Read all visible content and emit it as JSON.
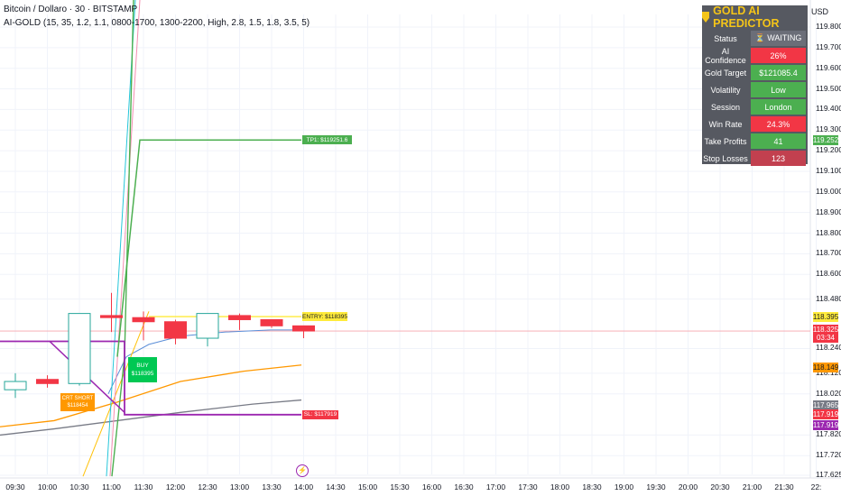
{
  "header": {
    "title": "Bitcoin / Dollaro · 30 · BITSTAMP",
    "indicator": "AI-GOLD (15, 35, 1.2, 1.1, 0800-1700, 1300-2200, High, 2.8, 1.5, 1.8, 3.5, 5)"
  },
  "panel": {
    "title": "GOLD AI PREDICTOR",
    "rows": [
      {
        "label": "Status",
        "value": "⏳ WAITING",
        "color": "#6b6e78"
      },
      {
        "label": "AI Confidence",
        "value": "26%",
        "color": "#f23645"
      },
      {
        "label": "Gold Target",
        "value": "$121085.4",
        "color": "#4caf50"
      },
      {
        "label": "Volatility",
        "value": "Low",
        "color": "#4caf50"
      },
      {
        "label": "Session",
        "value": "London",
        "color": "#4caf50"
      },
      {
        "label": "Win Rate",
        "value": "24.3%",
        "color": "#f23645"
      },
      {
        "label": "Take Profits",
        "value": "41",
        "color": "#4caf50"
      },
      {
        "label": "Stop Losses",
        "value": "123",
        "color": "#c2404f"
      }
    ]
  },
  "chart_data": {
    "type": "candlestick",
    "currency_label": "USD",
    "y_ticks": [
      "119.800",
      "119.700",
      "119.600",
      "119.500",
      "119.400",
      "119.300",
      "119.200",
      "119.100",
      "119.000",
      "118.900",
      "118.800",
      "118.700",
      "118.600",
      "118.480",
      "118.240",
      "118.120",
      "118.020",
      "117.820",
      "117.720",
      "117.625"
    ],
    "x_ticks": [
      "09:30",
      "10:00",
      "10:30",
      "11:00",
      "11:30",
      "12:00",
      "12:30",
      "13:00",
      "13:30",
      "14:00",
      "14:30",
      "15:00",
      "15:30",
      "16:00",
      "16:30",
      "17:00",
      "17:30",
      "18:00",
      "18:30",
      "19:00",
      "19:30",
      "20:00",
      "20:30",
      "21:00",
      "21:30",
      "22:"
    ],
    "candles": [
      {
        "time": "09:30",
        "open": 118.04,
        "high": 118.12,
        "low": 118.0,
        "close": 118.08
      },
      {
        "time": "10:00",
        "open": 118.09,
        "high": 118.11,
        "low": 118.05,
        "close": 118.07
      },
      {
        "time": "10:30",
        "open": 118.07,
        "high": 118.41,
        "low": 118.06,
        "close": 118.41
      },
      {
        "time": "11:00",
        "open": 118.4,
        "high": 118.51,
        "low": 118.32,
        "close": 118.39
      },
      {
        "time": "11:30",
        "open": 118.39,
        "high": 118.42,
        "low": 118.28,
        "close": 118.37
      },
      {
        "time": "12:00",
        "open": 118.37,
        "high": 118.38,
        "low": 118.26,
        "close": 118.29
      },
      {
        "time": "12:30",
        "open": 118.29,
        "high": 118.41,
        "low": 118.25,
        "close": 118.41
      },
      {
        "time": "13:00",
        "open": 118.4,
        "high": 118.41,
        "low": 118.33,
        "close": 118.38
      },
      {
        "time": "13:30",
        "open": 118.38,
        "high": 118.38,
        "low": 118.34,
        "close": 118.35
      },
      {
        "time": "14:00",
        "open": 118.35,
        "high": 118.35,
        "low": 118.29,
        "close": 118.325
      }
    ],
    "levels": {
      "tp1": {
        "label": "TP1: $119251.6",
        "value": 119.252
      },
      "entry": {
        "label": "ENTRY: $118395",
        "value": 118.395
      },
      "sl": {
        "label": "SL: $117919",
        "value": 117.919
      }
    },
    "signals": [
      {
        "label": "BUY $118395",
        "type": "buy"
      },
      {
        "label": "CRT SHORT $118454",
        "type": "short"
      }
    ],
    "price_labels": [
      {
        "value": "119.252",
        "color": "#4caf50",
        "text_color": "#ffffff"
      },
      {
        "value": "118.395",
        "color": "#ffeb3b",
        "text_color": "#131722"
      },
      {
        "value": "118.328",
        "color": "#2962ff",
        "text_color": "#ffffff"
      },
      {
        "value": "118.325",
        "color": "#f23645",
        "text_color": "#ffffff"
      },
      {
        "value": "03:34",
        "color": "#f23645",
        "text_color": "#ffffff"
      },
      {
        "value": "118.149",
        "color": "#ff9800",
        "text_color": "#131722"
      },
      {
        "value": "117.965",
        "color": "#787b86",
        "text_color": "#ffffff"
      },
      {
        "value": "117.919",
        "color": "#f23645",
        "text_color": "#ffffff"
      },
      {
        "value": "117.919",
        "color": "#9c27b0",
        "text_color": "#ffffff"
      }
    ],
    "colors": {
      "up": "#26a69a",
      "down": "#f23645",
      "tp": "#4caf50",
      "entry": "#ffeb3b",
      "sl": "#f23645",
      "box": "#9c27b0"
    }
  }
}
